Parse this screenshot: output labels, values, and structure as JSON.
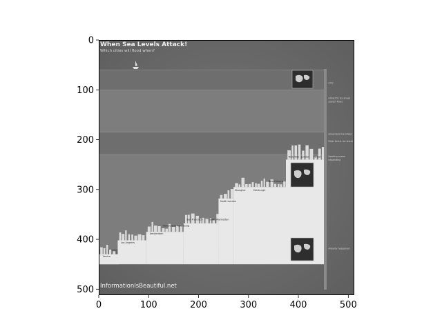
{
  "chart_data": {
    "type": "image",
    "colormap": "gray",
    "title": "",
    "xlabel": "",
    "ylabel": "",
    "xlim": [
      0,
      512
    ],
    "ylim": [
      512,
      0
    ],
    "xticks": [
      0,
      100,
      200,
      300,
      400,
      500
    ],
    "yticks": [
      0,
      100,
      200,
      300,
      400,
      500
    ],
    "image": {
      "title": "When Sea Levels Attack!",
      "subtitle": "Which cities will flood when?",
      "footer": "InformationIsBeautiful.net",
      "bands": [
        {
          "y_from": 60,
          "y_to": 100
        },
        {
          "y_from": 100,
          "y_to": 185
        },
        {
          "y_from": 185,
          "y_to": 230
        },
        {
          "y_from": 230,
          "y_to": 420
        }
      ],
      "city_steps": [
        {
          "x_from": 0,
          "x_to": 38,
          "y": 430,
          "label": "Venice"
        },
        {
          "x_from": 38,
          "x_to": 95,
          "y": 402,
          "label": "Los Angeles"
        },
        {
          "x_from": 95,
          "x_to": 170,
          "y": 385,
          "label": "Hamburg"
        },
        {
          "x_from": 170,
          "x_to": 240,
          "y": 368,
          "label": "San Francisco"
        },
        {
          "x_from": 240,
          "x_to": 270,
          "y": 318,
          "label": "South London"
        },
        {
          "x_from": 270,
          "x_to": 375,
          "y": 295,
          "label": "Shanghai"
        },
        {
          "x_from": 375,
          "x_to": 452,
          "y": 240,
          "label": "New York"
        }
      ],
      "city_labels": [
        {
          "x": 8,
          "y": 436,
          "text": "Venice"
        },
        {
          "x": 44,
          "y": 408,
          "text": "Los Angeles"
        },
        {
          "x": 102,
          "y": 390,
          "text": "Amsterdam"
        },
        {
          "x": 128,
          "y": 374,
          "text": "Hamburg"
        },
        {
          "x": 150,
          "y": 374,
          "text": "St Petersburg"
        },
        {
          "x": 176,
          "y": 362,
          "text": "San Francisco"
        },
        {
          "x": 220,
          "y": 362,
          "text": "Lower Manhattan"
        },
        {
          "x": 243,
          "y": 325,
          "text": "South London"
        },
        {
          "x": 272,
          "y": 303,
          "text": "Shanghai"
        },
        {
          "x": 310,
          "y": 303,
          "text": "Edinburgh"
        },
        {
          "x": 340,
          "y": 285,
          "text": "New Orleans"
        },
        {
          "x": 380,
          "y": 236,
          "text": "New York"
        },
        {
          "x": 405,
          "y": 236,
          "text": "London"
        },
        {
          "x": 430,
          "y": 236,
          "text": "Taiwan"
        }
      ],
      "side_notes": [
        {
          "y": 88,
          "text": "CO2"
        },
        {
          "y": 118,
          "text": "Antarctic ice sheet"
        },
        {
          "y": 125,
          "text": "(South Pole)"
        },
        {
          "y": 190,
          "text": "Greenland ice sheet"
        },
        {
          "y": 205,
          "text": "Polar Arctic ice sheet"
        },
        {
          "y": 235,
          "text": "Heating ocean"
        },
        {
          "y": 242,
          "text": "expanding"
        },
        {
          "y": 420,
          "text": "Already happened"
        }
      ]
    }
  }
}
